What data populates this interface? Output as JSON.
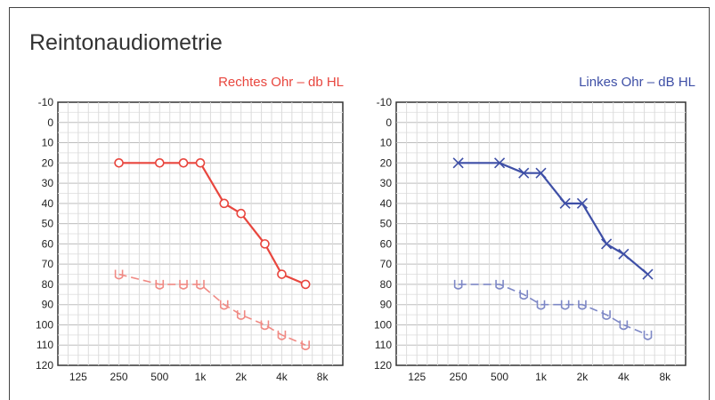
{
  "page": {
    "title": "Reintonaudiometrie"
  },
  "chart_data": [
    {
      "type": "line",
      "title": "Rechtes Ohr – db HL",
      "x_ticks": [
        "125",
        "250",
        "500",
        "1k",
        "2k",
        "4k",
        "8k"
      ],
      "y_ticks": [
        "-10",
        "0",
        "10",
        "20",
        "30",
        "40",
        "50",
        "60",
        "70",
        "80",
        "90",
        "100",
        "110",
        "120"
      ],
      "ylim": [
        -10,
        120
      ],
      "y_inverted": true,
      "x_scale": "log",
      "color": "#e8463e",
      "light_color": "#f08a84",
      "series": [
        {
          "marker": "circle",
          "style": "solid",
          "x": [
            250,
            500,
            750,
            1000,
            1500,
            2000,
            3000,
            4000,
            6000
          ],
          "y": [
            20,
            20,
            20,
            20,
            40,
            45,
            60,
            75,
            80
          ]
        },
        {
          "marker": "bracket",
          "style": "dashed",
          "x": [
            250,
            500,
            750,
            1000,
            1500,
            2000,
            3000,
            4000,
            6000
          ],
          "y": [
            75,
            80,
            80,
            80,
            90,
            95,
            100,
            105,
            110
          ]
        }
      ]
    },
    {
      "type": "line",
      "title": "Linkes Ohr – dB HL",
      "x_ticks": [
        "125",
        "250",
        "500",
        "1k",
        "2k",
        "4k",
        "8k"
      ],
      "y_ticks": [
        "-10",
        "0",
        "10",
        "20",
        "30",
        "40",
        "50",
        "60",
        "70",
        "80",
        "90",
        "100",
        "110",
        "120"
      ],
      "ylim": [
        -10,
        120
      ],
      "y_inverted": true,
      "x_scale": "log",
      "color": "#3e4fa6",
      "light_color": "#7e88c6",
      "series": [
        {
          "marker": "cross",
          "style": "solid",
          "x": [
            250,
            500,
            750,
            1000,
            1500,
            2000,
            3000,
            4000,
            6000
          ],
          "y": [
            20,
            20,
            25,
            25,
            40,
            40,
            60,
            65,
            75
          ]
        },
        {
          "marker": "bracket",
          "style": "dashed",
          "x": [
            250,
            500,
            750,
            1000,
            1500,
            2000,
            3000,
            4000,
            6000
          ],
          "y": [
            80,
            80,
            85,
            90,
            90,
            90,
            95,
            100,
            105
          ]
        }
      ]
    }
  ]
}
